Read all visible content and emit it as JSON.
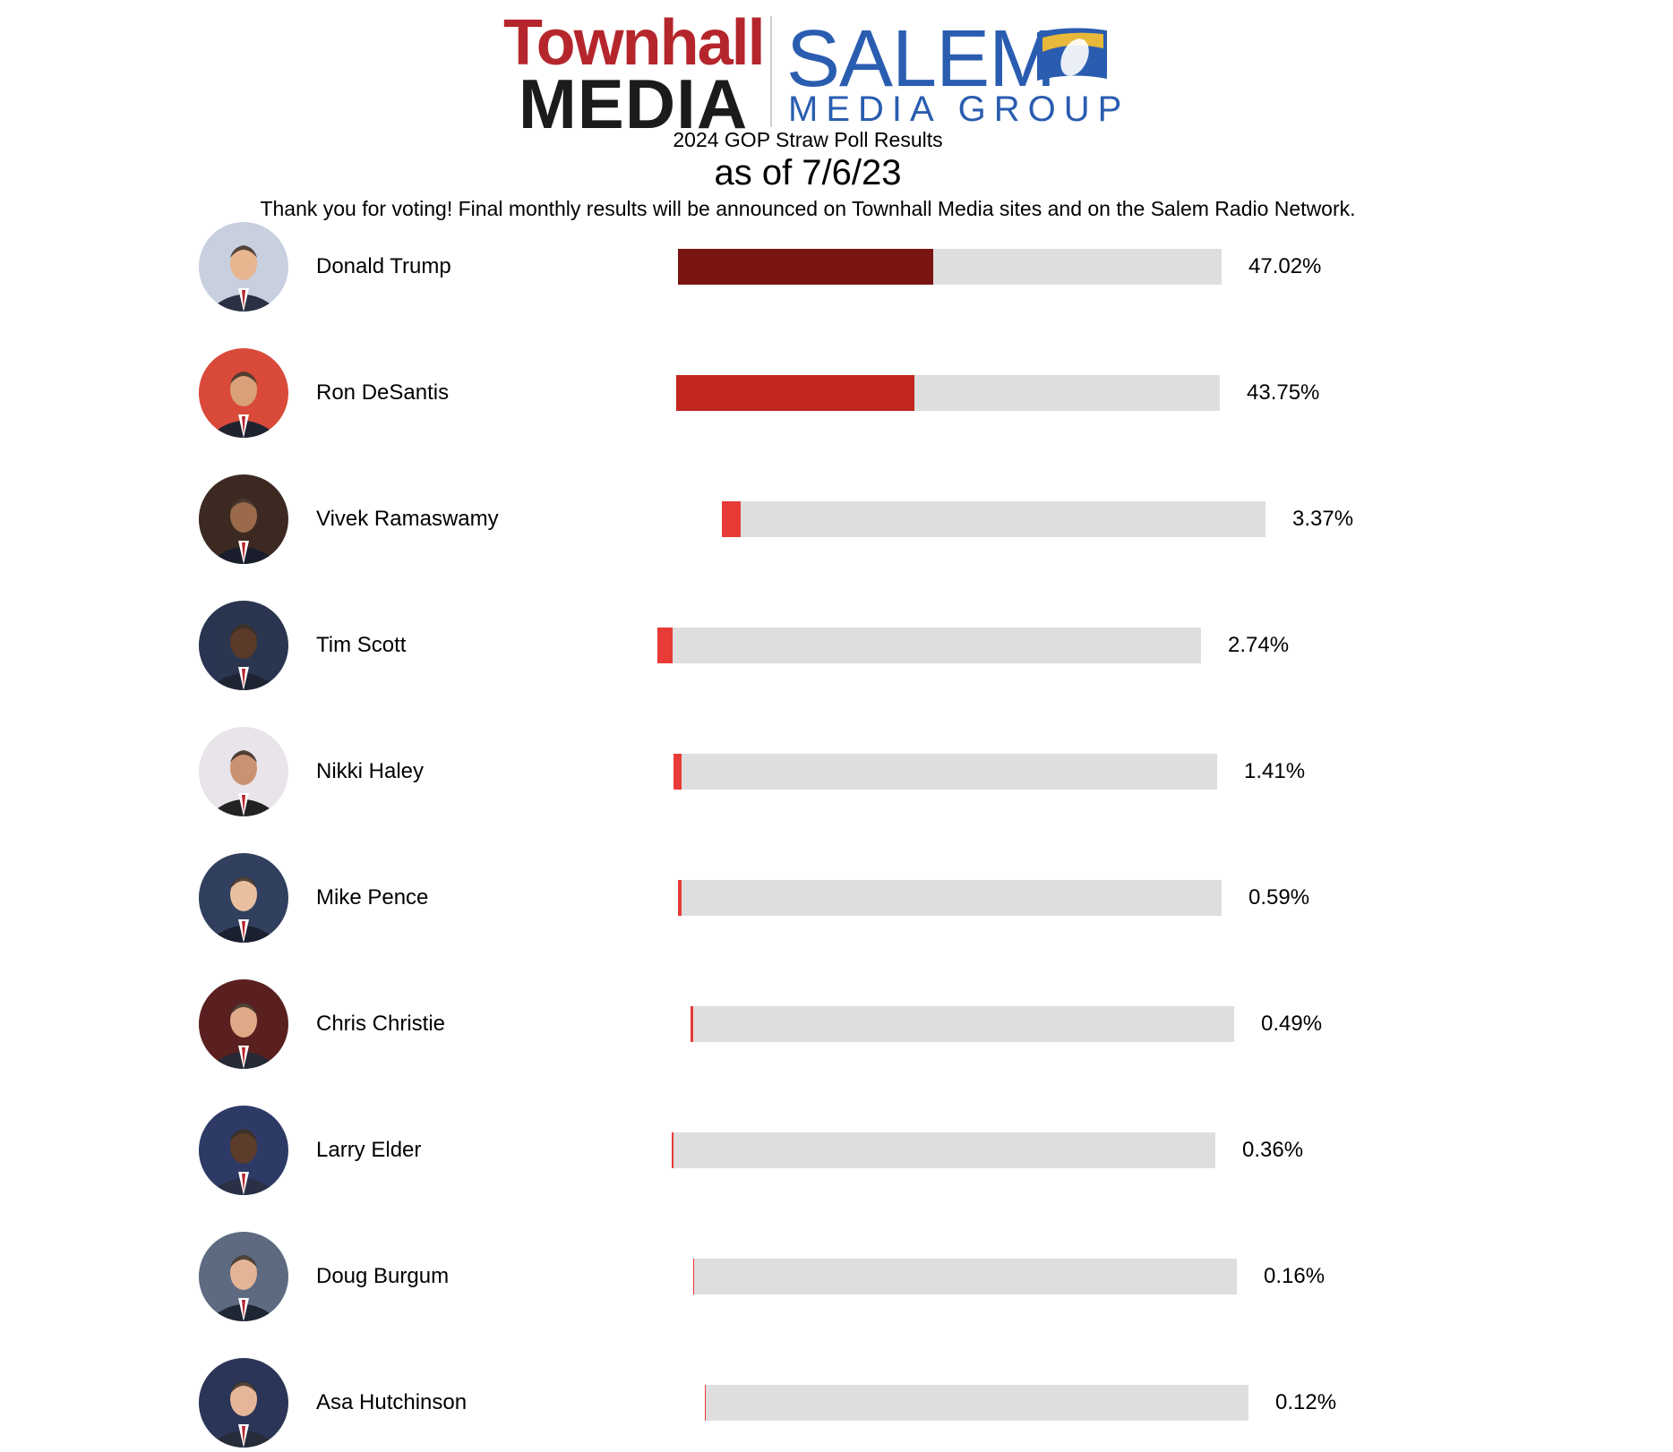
{
  "header": {
    "townhall_logo_top": "Townhall",
    "townhall_logo_bottom": "MEDIA",
    "salem_logo_top": "SALEM",
    "salem_logo_bottom": "MEDIA GROUP",
    "title": "2024 GOP Straw Poll Results",
    "date": "as of 7/6/23",
    "note": "Thank you for voting! Final monthly results will be announced on Townhall Media sites and on the Salem Radio Network."
  },
  "colors": {
    "track": "#dedede",
    "townhall_red": "#b5262c",
    "salem_blue": "#2a5db0",
    "fills": [
      "#7a1410",
      "#c2261f",
      "#e83a36",
      "#e83a36",
      "#e83a36",
      "#e83a36",
      "#e83a36",
      "#e83a36",
      "#e83a36",
      "#e83a36"
    ]
  },
  "chart_data": {
    "type": "bar",
    "orientation": "horizontal",
    "title": "2024 GOP Straw Poll Results",
    "subtitle": "as of 7/6/23",
    "xlim": [
      0,
      100
    ],
    "categories": [
      "Donald Trump",
      "Ron DeSantis",
      "Vivek Ramaswamy",
      "Tim Scott",
      "Nikki Haley",
      "Mike Pence",
      "Chris Christie",
      "Larry Elder",
      "Doug Burgum",
      "Asa Hutchinson"
    ],
    "values": [
      47.02,
      43.75,
      3.37,
      2.74,
      1.41,
      0.59,
      0.49,
      0.36,
      0.16,
      0.12
    ],
    "labels": [
      "47.02%",
      "43.75%",
      "3.37%",
      "2.74%",
      "1.41%",
      "0.59%",
      "0.49%",
      "0.36%",
      "0.16%",
      "0.12%"
    ]
  },
  "candidates": [
    {
      "name": "Donald Trump",
      "label": "47.02%",
      "avatar": "portrait-icon"
    },
    {
      "name": "Ron DeSantis",
      "label": "43.75%",
      "avatar": "portrait-icon"
    },
    {
      "name": "Vivek Ramaswamy",
      "label": "3.37%",
      "avatar": "portrait-icon"
    },
    {
      "name": "Tim Scott",
      "label": "2.74%",
      "avatar": "portrait-icon"
    },
    {
      "name": "Nikki Haley",
      "label": "1.41%",
      "avatar": "portrait-icon"
    },
    {
      "name": "Mike Pence",
      "label": "0.59%",
      "avatar": "portrait-icon"
    },
    {
      "name": "Chris Christie",
      "label": "0.49%",
      "avatar": "portrait-icon"
    },
    {
      "name": "Larry Elder",
      "label": "0.36%",
      "avatar": "portrait-icon"
    },
    {
      "name": "Doug Burgum",
      "label": "0.16%",
      "avatar": "portrait-icon"
    },
    {
      "name": "Asa Hutchinson",
      "label": "0.12%",
      "avatar": "portrait-icon"
    }
  ]
}
